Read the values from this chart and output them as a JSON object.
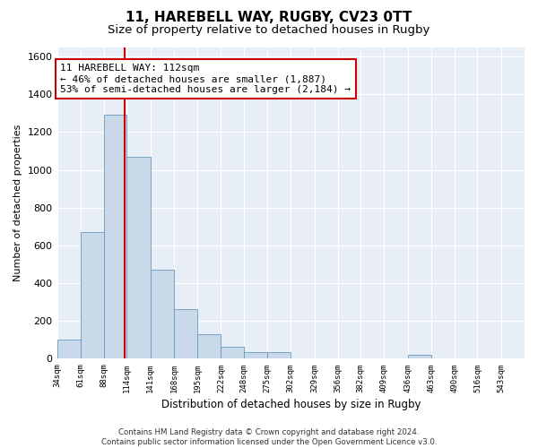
{
  "title_line1": "11, HAREBELL WAY, RUGBY, CV23 0TT",
  "title_line2": "Size of property relative to detached houses in Rugby",
  "xlabel": "Distribution of detached houses by size in Rugby",
  "ylabel": "Number of detached properties",
  "bar_color": "#c9d9ea",
  "bar_edge_color": "#6699bb",
  "vline_x": 112,
  "vline_color": "#cc0000",
  "annotation_text": "11 HAREBELL WAY: 112sqm\n← 46% of detached houses are smaller (1,887)\n53% of semi-detached houses are larger (2,184) →",
  "annotation_box_color": "#cc0000",
  "bin_edges": [
    34,
    61,
    88,
    114,
    141,
    168,
    195,
    222,
    248,
    275,
    302,
    329,
    356,
    382,
    409,
    436,
    463,
    490,
    516,
    543,
    570
  ],
  "bar_heights": [
    100,
    670,
    1290,
    1070,
    470,
    265,
    130,
    65,
    35,
    35,
    0,
    0,
    0,
    0,
    0,
    20,
    0,
    0,
    0,
    0
  ],
  "ylim": [
    0,
    1650
  ],
  "yticks": [
    0,
    200,
    400,
    600,
    800,
    1000,
    1200,
    1400,
    1600
  ],
  "footer_text": "Contains HM Land Registry data © Crown copyright and database right 2024.\nContains public sector information licensed under the Open Government Licence v3.0.",
  "fig_background": "#ffffff",
  "plot_background": "#e8eef5",
  "grid_color": "#ffffff",
  "title_fontsize": 11,
  "subtitle_fontsize": 9.5,
  "annotation_fontsize": 8,
  "label_fontsize": 8.5
}
